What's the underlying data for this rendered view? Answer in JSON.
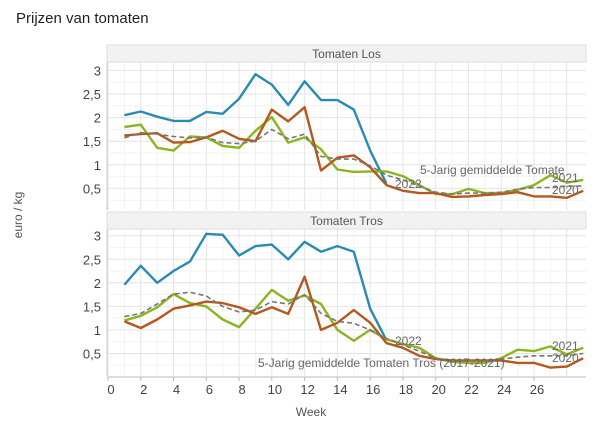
{
  "title": "Prijzen van tomaten",
  "chart_data": [
    {
      "type": "line",
      "panel": "Tomaten Los",
      "xlabel": "Week",
      "ylabel": "euro / kg",
      "x_ticks": [
        "0",
        "2",
        "4",
        "6",
        "8",
        "10",
        "12",
        "14",
        "16",
        "18",
        "20",
        "22",
        "24",
        "26"
      ],
      "y_ticks": [
        "0,5",
        "1",
        "1,5",
        "2",
        "2,5",
        "3"
      ],
      "xlim": [
        0,
        29
      ],
      "ylim": [
        0,
        3.15
      ],
      "grid": true,
      "series": [
        {
          "name": "2022",
          "color": "#2a8bb2",
          "dashed": false,
          "values": [
            2.05,
            2.13,
            2.02,
            1.93,
            1.93,
            2.12,
            2.08,
            2.4,
            2.92,
            2.7,
            2.27,
            2.77,
            2.37,
            2.37,
            2.17,
            1.3,
            0.6
          ]
        },
        {
          "name": "2021",
          "color": "#8cb41e",
          "dashed": false,
          "values": [
            1.8,
            1.85,
            1.36,
            1.3,
            1.6,
            1.58,
            1.4,
            1.36,
            1.72,
            2.01,
            1.47,
            1.58,
            1.33,
            0.9,
            0.85,
            0.86,
            0.86,
            0.76,
            0.57,
            0.38,
            0.38,
            0.49,
            0.4,
            0.4,
            0.47,
            0.57,
            0.78,
            0.62,
            0.68
          ]
        },
        {
          "name": "2020",
          "color": "#b5581e",
          "dashed": false,
          "values": [
            1.62,
            1.65,
            1.67,
            1.47,
            1.48,
            1.58,
            1.72,
            1.55,
            1.5,
            2.17,
            1.92,
            2.22,
            0.88,
            1.15,
            1.2,
            0.95,
            0.57,
            0.45,
            0.4,
            0.4,
            0.32,
            0.33,
            0.36,
            0.38,
            0.42,
            0.33,
            0.33,
            0.3,
            0.45
          ]
        },
        {
          "name": "5-Jarig gemiddelde Tomate",
          "color": "#777777",
          "dashed": true,
          "values": [
            1.57,
            1.68,
            1.65,
            1.6,
            1.57,
            1.58,
            1.47,
            1.45,
            1.5,
            1.75,
            1.55,
            1.65,
            1.18,
            1.12,
            1.12,
            0.98,
            0.78,
            0.68,
            0.55,
            0.42,
            0.38,
            0.4,
            0.4,
            0.42,
            0.48,
            0.52,
            0.52,
            0.55,
            0.55
          ]
        }
      ]
    },
    {
      "type": "line",
      "panel": "Tomaten Tros",
      "xlabel": "Week",
      "ylabel": "euro / kg",
      "x_ticks": [
        "0",
        "2",
        "4",
        "6",
        "8",
        "10",
        "12",
        "14",
        "16",
        "18",
        "20",
        "22",
        "24",
        "26"
      ],
      "y_ticks": [
        "0,5",
        "1",
        "1,5",
        "2",
        "2,5",
        "3"
      ],
      "xlim": [
        0,
        29
      ],
      "ylim": [
        0,
        3.15
      ],
      "grid": true,
      "series": [
        {
          "name": "2022",
          "color": "#2a8bb2",
          "dashed": false,
          "values": [
            1.96,
            2.36,
            2.0,
            2.25,
            2.45,
            3.04,
            3.02,
            2.58,
            2.78,
            2.81,
            2.5,
            2.87,
            2.66,
            2.78,
            2.66,
            1.45,
            0.78
          ]
        },
        {
          "name": "2021",
          "color": "#8cb41e",
          "dashed": false,
          "values": [
            1.2,
            1.3,
            1.48,
            1.76,
            1.57,
            1.5,
            1.22,
            1.06,
            1.45,
            1.85,
            1.62,
            1.73,
            1.55,
            1.0,
            0.77,
            1.0,
            0.8,
            0.7,
            0.62,
            0.4,
            0.32,
            0.3,
            0.3,
            0.4,
            0.58,
            0.55,
            0.65,
            0.48,
            0.62
          ]
        },
        {
          "name": "2020",
          "color": "#b5581e",
          "dashed": false,
          "values": [
            1.18,
            1.04,
            1.22,
            1.45,
            1.52,
            1.6,
            1.57,
            1.48,
            1.34,
            1.48,
            1.34,
            2.13,
            1.0,
            1.15,
            1.42,
            1.15,
            0.72,
            0.62,
            0.45,
            0.38,
            0.35,
            0.35,
            0.35,
            0.35,
            0.3,
            0.3,
            0.2,
            0.22,
            0.4
          ]
        },
        {
          "name": "5-Jarig gemiddelde Tomaten Tros (2017-2021)",
          "color": "#777777",
          "dashed": true,
          "values": [
            1.28,
            1.35,
            1.55,
            1.76,
            1.8,
            1.72,
            1.5,
            1.38,
            1.42,
            1.6,
            1.55,
            1.75,
            1.35,
            1.18,
            1.14,
            1.0,
            0.82,
            0.68,
            0.55,
            0.4,
            0.35,
            0.35,
            0.35,
            0.38,
            0.42,
            0.45,
            0.45,
            0.45,
            0.5
          ]
        }
      ]
    }
  ]
}
